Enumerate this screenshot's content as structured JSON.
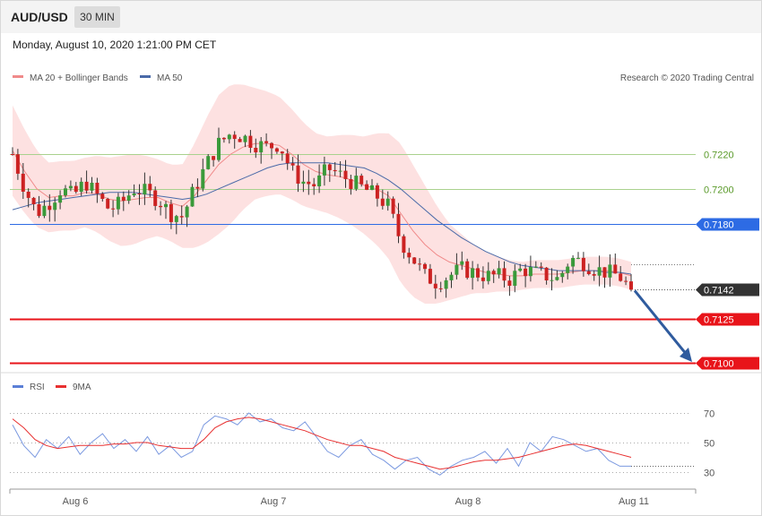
{
  "header": {
    "symbol": "AUD/USD",
    "timeframe": "30 MIN",
    "datetime": "Monday, August 10, 2020 1:21:00 PM CET",
    "credit": "Research © 2020 Trading Central"
  },
  "legend": {
    "ma20": "MA 20 + Bollinger Bands",
    "ma50": "MA 50",
    "rsi": "RSI",
    "ma9": "9MA"
  },
  "colors": {
    "band": "#fddcdc",
    "ma20": "#f08a8a",
    "ma50": "#4a6aa8",
    "bull": "#3a9a3a",
    "bear": "#cc2222",
    "level_green": "#a9d18e",
    "level_blue": "#2d6be4",
    "level_red": "#e8141a",
    "current": "#333333",
    "arrow": "#2f5b9e",
    "rsi": "#7b99e0",
    "rsi_ma": "#e83030"
  },
  "chart_data": [
    {
      "type": "candlestick",
      "title": "AUD/USD 30 MIN",
      "x_tick_labels": [
        "Aug 6",
        "Aug 7",
        "Aug 8",
        "Aug 11"
      ],
      "ylim": [
        0.71,
        0.7225
      ],
      "levels": [
        {
          "value": 0.722,
          "label": "0.7220",
          "style": "green"
        },
        {
          "value": 0.72,
          "label": "0.7200",
          "style": "green"
        },
        {
          "value": 0.718,
          "label": "0.7180",
          "style": "blue"
        },
        {
          "value": 0.7142,
          "label": "0.7142",
          "style": "current"
        },
        {
          "value": 0.7125,
          "label": "0.7125",
          "style": "red"
        },
        {
          "value": 0.71,
          "label": "0.7100",
          "style": "red"
        }
      ],
      "forecast_arrow": {
        "from": 0.7142,
        "to": 0.71
      },
      "close_path": [
        0.722,
        0.72,
        0.7186,
        0.7192,
        0.72,
        0.7196,
        0.7204,
        0.7196,
        0.7188,
        0.7192,
        0.72,
        0.7198,
        0.7194,
        0.7186,
        0.7184,
        0.72,
        0.7214,
        0.7226,
        0.7232,
        0.723,
        0.7226,
        0.7224,
        0.7226,
        0.721,
        0.7204,
        0.7202,
        0.7212,
        0.7208,
        0.7204,
        0.72,
        0.7196,
        0.719,
        0.717,
        0.716,
        0.715,
        0.7146,
        0.715,
        0.7154,
        0.7152,
        0.715,
        0.715,
        0.7148,
        0.7154,
        0.7152,
        0.715,
        0.7148,
        0.716,
        0.7158,
        0.7154,
        0.7152,
        0.715,
        0.7142
      ],
      "ma20": [
        0.7222,
        0.721,
        0.72,
        0.7195,
        0.7196,
        0.7196,
        0.7198,
        0.7197,
        0.7194,
        0.7193,
        0.7194,
        0.7195,
        0.7195,
        0.7192,
        0.719,
        0.7196,
        0.7205,
        0.7214,
        0.722,
        0.7224,
        0.7226,
        0.7226,
        0.7225,
        0.722,
        0.7214,
        0.721,
        0.7208,
        0.7207,
        0.7205,
        0.7202,
        0.72,
        0.7196,
        0.7186,
        0.7176,
        0.7168,
        0.7162,
        0.7158,
        0.7156,
        0.7154,
        0.7152,
        0.7151,
        0.715,
        0.715,
        0.7151,
        0.7151,
        0.7151,
        0.7152,
        0.7153,
        0.7153,
        0.7153,
        0.7152,
        0.715
      ],
      "ma50": [
        0.7188,
        0.719,
        0.7192,
        0.7193,
        0.7194,
        0.7195,
        0.7196,
        0.7197,
        0.7198,
        0.7198,
        0.7198,
        0.7197,
        0.7196,
        0.7195,
        0.7194,
        0.7195,
        0.7197,
        0.72,
        0.7203,
        0.7206,
        0.7209,
        0.7212,
        0.7214,
        0.7215,
        0.7215,
        0.7215,
        0.7215,
        0.7214,
        0.7213,
        0.7212,
        0.7209,
        0.7205,
        0.72,
        0.7194,
        0.7188,
        0.7182,
        0.7177,
        0.7172,
        0.7168,
        0.7164,
        0.7161,
        0.7158,
        0.7156,
        0.7155,
        0.7154,
        0.7153,
        0.7153,
        0.7153,
        0.7153,
        0.7152,
        0.7152,
        0.7151
      ],
      "bb_width": [
        0.0026,
        0.0024,
        0.0022,
        0.002,
        0.002,
        0.002,
        0.002,
        0.0022,
        0.0024,
        0.0026,
        0.0026,
        0.0024,
        0.0022,
        0.0022,
        0.0024,
        0.003,
        0.0036,
        0.004,
        0.004,
        0.0036,
        0.0032,
        0.003,
        0.0028,
        0.0026,
        0.0024,
        0.0022,
        0.0022,
        0.0024,
        0.0026,
        0.0028,
        0.0032,
        0.0036,
        0.004,
        0.0038,
        0.0034,
        0.0028,
        0.0022,
        0.0018,
        0.0014,
        0.0012,
        0.001,
        0.0009,
        0.0008,
        0.0008,
        0.0008,
        0.0008,
        0.0008,
        0.0008,
        0.0008,
        0.0008,
        0.0008,
        0.0008
      ]
    },
    {
      "type": "line",
      "title": "RSI",
      "ylim": [
        20,
        80
      ],
      "y_tick_labels": [
        "70",
        "50",
        "30"
      ],
      "y_ticks": [
        70,
        50,
        30
      ],
      "series": [
        {
          "name": "RSI",
          "values": [
            62,
            48,
            40,
            52,
            46,
            54,
            42,
            50,
            56,
            46,
            52,
            44,
            54,
            42,
            48,
            40,
            44,
            62,
            68,
            66,
            62,
            70,
            64,
            66,
            60,
            58,
            64,
            54,
            44,
            40,
            48,
            52,
            42,
            38,
            32,
            38,
            40,
            32,
            28,
            34,
            38,
            40,
            44,
            36,
            46,
            34,
            50,
            44,
            54,
            52,
            48,
            44,
            46,
            38,
            34,
            34
          ]
        },
        {
          "name": "9MA",
          "values": [
            66,
            60,
            52,
            48,
            46,
            47,
            48,
            48,
            48,
            49,
            49,
            50,
            50,
            48,
            47,
            46,
            46,
            52,
            60,
            64,
            66,
            67,
            66,
            64,
            62,
            60,
            58,
            55,
            52,
            50,
            48,
            48,
            46,
            44,
            40,
            38,
            36,
            34,
            32,
            33,
            35,
            37,
            38,
            38,
            39,
            40,
            42,
            44,
            46,
            48,
            49,
            48,
            46,
            44,
            42,
            40
          ]
        }
      ]
    }
  ]
}
